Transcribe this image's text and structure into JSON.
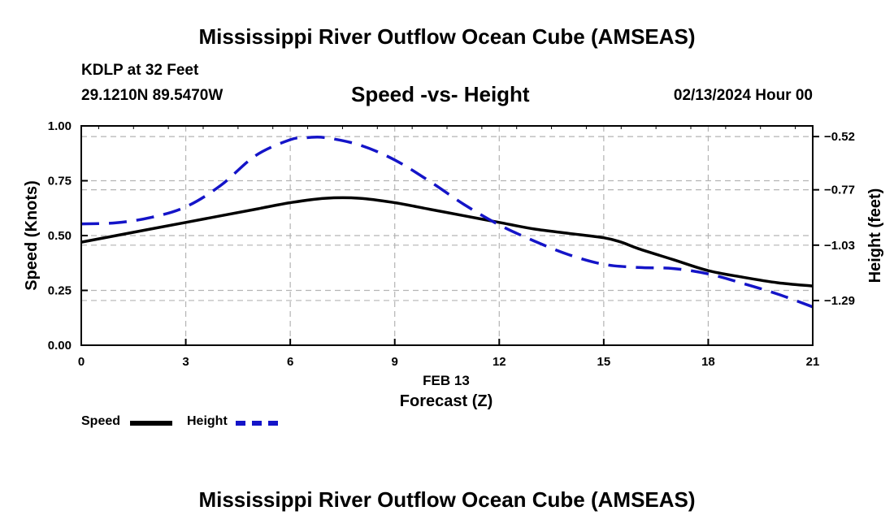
{
  "header": {
    "title": "Mississippi River Outflow Ocean Cube (AMSEAS)",
    "station": "KDLP at 32 Feet",
    "coords": "29.1210N  89.5470W",
    "subtitle": "Speed -vs- Height",
    "datetime": "02/13/2024 Hour 00"
  },
  "footer": {
    "title": "Mississippi River Outflow Ocean Cube (AMSEAS)"
  },
  "legend": {
    "speed_label": "Speed",
    "height_label": "Height"
  },
  "colors": {
    "speed": "#000000",
    "height": "#1414c8",
    "grid": "#b4b4b4"
  },
  "chart_data": {
    "type": "line",
    "title": "Speed -vs- Height",
    "xlabel": "Forecast (Z)",
    "xlabel_date": "FEB 13",
    "ylabel": "Speed (Knots)",
    "y2label": "Height (feet)",
    "xlim": [
      0,
      21
    ],
    "ylim": [
      0,
      1
    ],
    "y2lim": [
      -1.5,
      -0.47
    ],
    "xticks": [
      0,
      3,
      6,
      9,
      12,
      15,
      18,
      21
    ],
    "xtick_labels": [
      "0",
      "3",
      "6",
      "9",
      "12",
      "15",
      "18",
      "21"
    ],
    "yticks": [
      0,
      0.25,
      0.5,
      0.75,
      1
    ],
    "ytick_labels": [
      "0.00",
      "0.25",
      "0.50",
      "0.75",
      "1.00"
    ],
    "y2ticks": [
      -0.52,
      -0.77,
      -1.03,
      -1.29
    ],
    "y2tick_labels": [
      "−0.52",
      "−0.77",
      "−1.03",
      "−1.29"
    ],
    "grid": true,
    "series": [
      {
        "name": "Speed",
        "axis": "left",
        "style": "solid",
        "x": [
          0,
          1,
          2,
          3,
          4,
          5,
          6,
          7,
          8,
          9,
          10,
          11,
          12,
          13,
          14,
          15,
          15.5,
          16,
          17,
          18,
          19,
          20,
          21
        ],
        "values": [
          0.47,
          0.5,
          0.53,
          0.56,
          0.59,
          0.62,
          0.65,
          0.67,
          0.67,
          0.65,
          0.62,
          0.59,
          0.56,
          0.53,
          0.51,
          0.49,
          0.47,
          0.44,
          0.39,
          0.34,
          0.31,
          0.285,
          0.27
        ]
      },
      {
        "name": "Height",
        "axis": "right",
        "style": "dashed",
        "x": [
          0,
          1,
          2,
          3,
          4,
          5,
          6,
          6.5,
          7,
          8,
          9,
          10,
          11,
          12,
          13,
          14,
          15,
          16,
          17,
          18,
          19,
          20,
          21
        ],
        "values": [
          -0.93,
          -0.925,
          -0.9,
          -0.85,
          -0.75,
          -0.61,
          -0.535,
          -0.525,
          -0.525,
          -0.56,
          -0.63,
          -0.73,
          -0.84,
          -0.935,
          -1.01,
          -1.075,
          -1.12,
          -1.135,
          -1.14,
          -1.165,
          -1.21,
          -1.26,
          -1.32
        ]
      }
    ]
  }
}
